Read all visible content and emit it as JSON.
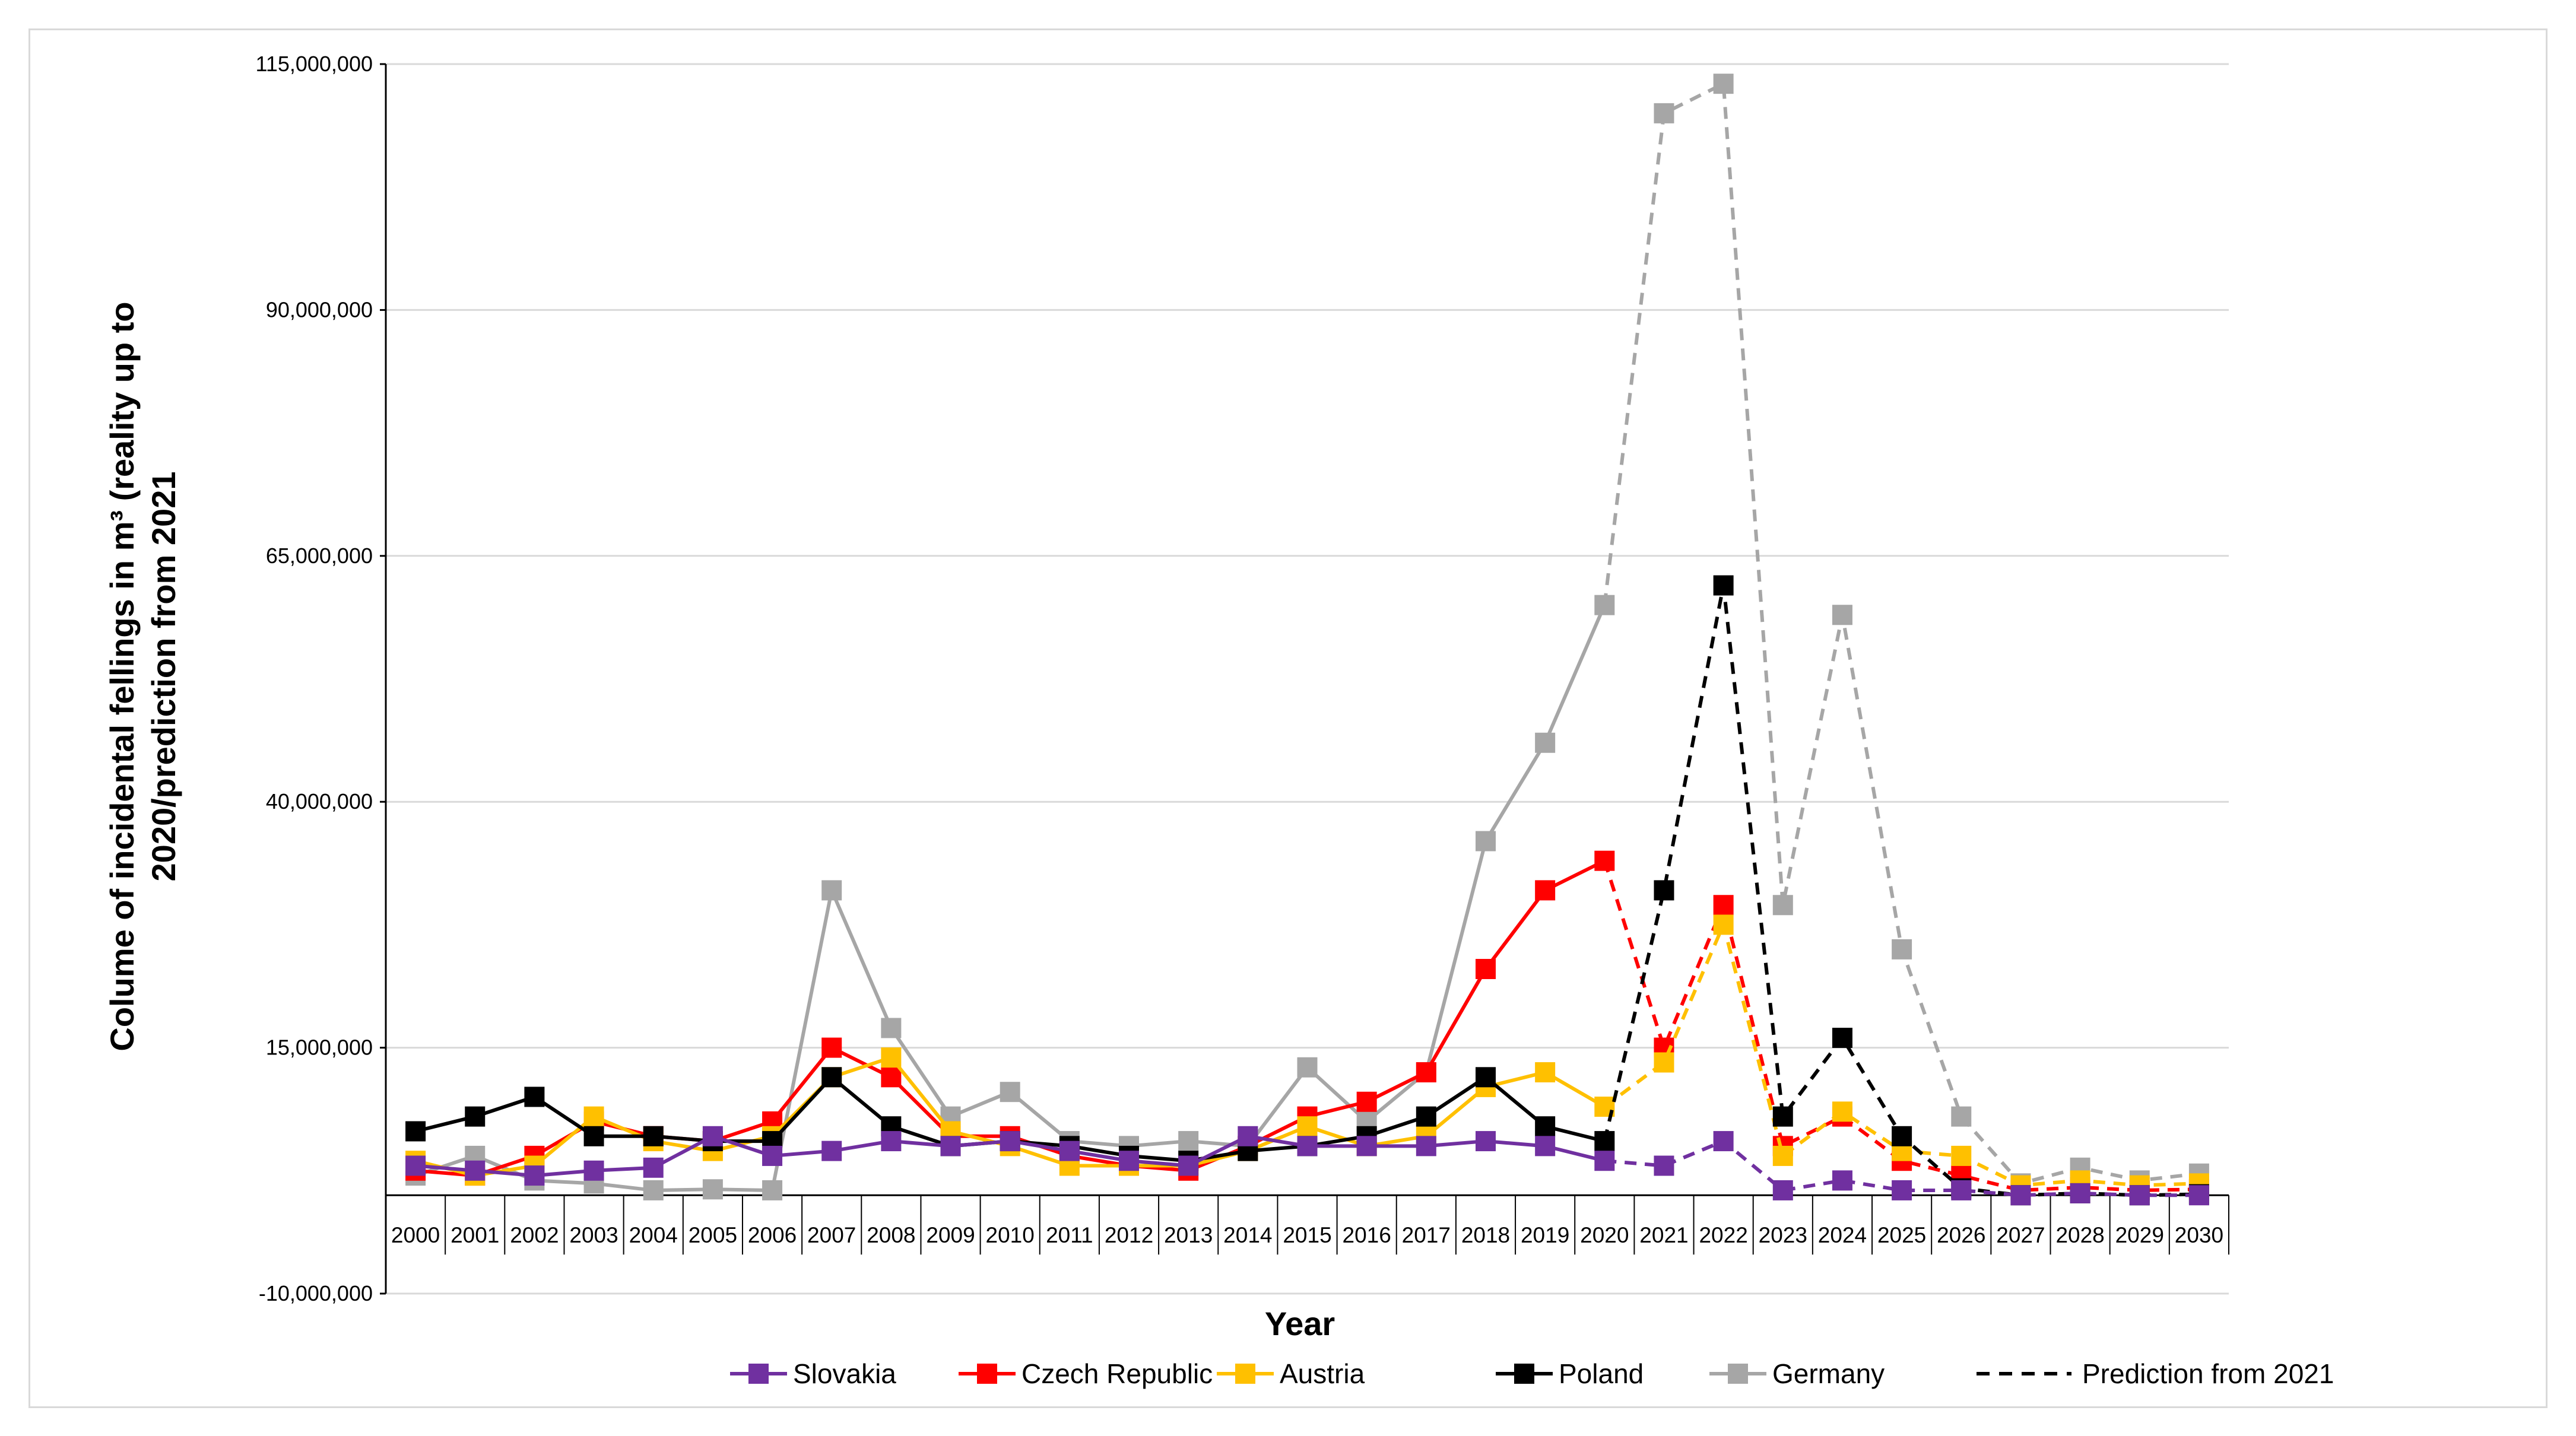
{
  "chart_data": {
    "type": "line",
    "title": "",
    "xlabel": "Year",
    "ylabel_lines": [
      "Colume of incidental fellings in m³  (reality up to",
      "2020/prediction from 2021"
    ],
    "ylim": [
      -10000000,
      115000000
    ],
    "yticks": [
      -10000000,
      15000000,
      40000000,
      65000000,
      90000000,
      115000000
    ],
    "ytick_labels": [
      "-10,000,000",
      "15,000,000",
      "40,000,000",
      "65,000,000",
      "90,000,000",
      "115,000,000"
    ],
    "x_axis_value": 0,
    "grid": true,
    "legend_position": "bottom",
    "categories": [
      "2000",
      "2001",
      "2002",
      "2003",
      "2004",
      "2005",
      "2006",
      "2007",
      "2008",
      "2009",
      "2010",
      "2011",
      "2012",
      "2013",
      "2014",
      "2015",
      "2016",
      "2017",
      "2018",
      "2019",
      "2020",
      "2021",
      "2022",
      "2023",
      "2024",
      "2025",
      "2026",
      "2027",
      "2028",
      "2029",
      "2030"
    ],
    "actual_through": "2020",
    "series": [
      {
        "name": "Germany",
        "color": "#a6a6a6",
        "values": [
          2000000,
          4000000,
          1500000,
          1200000,
          500000,
          600000,
          500000,
          31000000,
          17000000,
          8000000,
          10500000,
          5500000,
          5000000,
          5500000,
          5000000,
          13000000,
          7500000,
          12500000,
          36000000,
          46000000,
          60000000,
          110000000,
          113000000,
          29500000,
          59000000,
          25000000,
          8000000,
          1200000,
          2800000,
          1500000,
          2200000
        ]
      },
      {
        "name": "Czech Republic",
        "color": "#ff0000",
        "values": [
          2500000,
          2000000,
          4000000,
          7500000,
          6000000,
          5500000,
          7500000,
          15000000,
          12000000,
          6000000,
          6000000,
          4000000,
          3000000,
          2500000,
          5000000,
          8000000,
          9500000,
          12500000,
          23000000,
          31000000,
          34000000,
          15000000,
          29500000,
          5000000,
          8000000,
          3500000,
          2000000,
          500000,
          800000,
          500000,
          600000
        ]
      },
      {
        "name": "Austria",
        "color": "#ffc000",
        "values": [
          3500000,
          2000000,
          3000000,
          8000000,
          5500000,
          4500000,
          6000000,
          12000000,
          14000000,
          6500000,
          5000000,
          3000000,
          3000000,
          3000000,
          4500000,
          7000000,
          5000000,
          6000000,
          11000000,
          12500000,
          9000000,
          13500000,
          27500000,
          4000000,
          8500000,
          4500000,
          4000000,
          1000000,
          1500000,
          1000000,
          1200000
        ]
      },
      {
        "name": "Poland",
        "color": "#000000",
        "values": [
          6500000,
          8000000,
          10000000,
          6000000,
          6000000,
          5500000,
          5500000,
          12000000,
          7000000,
          5000000,
          5500000,
          5000000,
          4000000,
          3500000,
          4500000,
          5000000,
          6000000,
          8000000,
          12000000,
          7000000,
          5500000,
          31000000,
          62000000,
          8000000,
          16000000,
          6000000,
          700000,
          0,
          200000,
          0,
          100000
        ]
      },
      {
        "name": "Slovakia",
        "color": "#7030a0",
        "values": [
          3000000,
          2500000,
          2000000,
          2500000,
          2800000,
          6000000,
          4000000,
          4500000,
          5500000,
          5000000,
          5500000,
          4500000,
          3500000,
          3000000,
          6000000,
          5000000,
          5000000,
          5000000,
          5500000,
          5000000,
          3500000,
          3000000,
          5500000,
          500000,
          1500000,
          500000,
          500000,
          0,
          200000,
          0,
          0
        ]
      }
    ],
    "legend": [
      {
        "name": "Slovakia",
        "color": "#7030a0",
        "style": "marker-line"
      },
      {
        "name": "Czech Republic",
        "color": "#ff0000",
        "style": "marker-line"
      },
      {
        "name": "Austria",
        "color": "#ffc000",
        "style": "marker-line"
      },
      {
        "name": "Poland",
        "color": "#000000",
        "style": "marker-line"
      },
      {
        "name": "Germany",
        "color": "#a6a6a6",
        "style": "marker-line"
      },
      {
        "name": "Prediction from 2021",
        "color": "#000000",
        "style": "dashed"
      }
    ]
  }
}
